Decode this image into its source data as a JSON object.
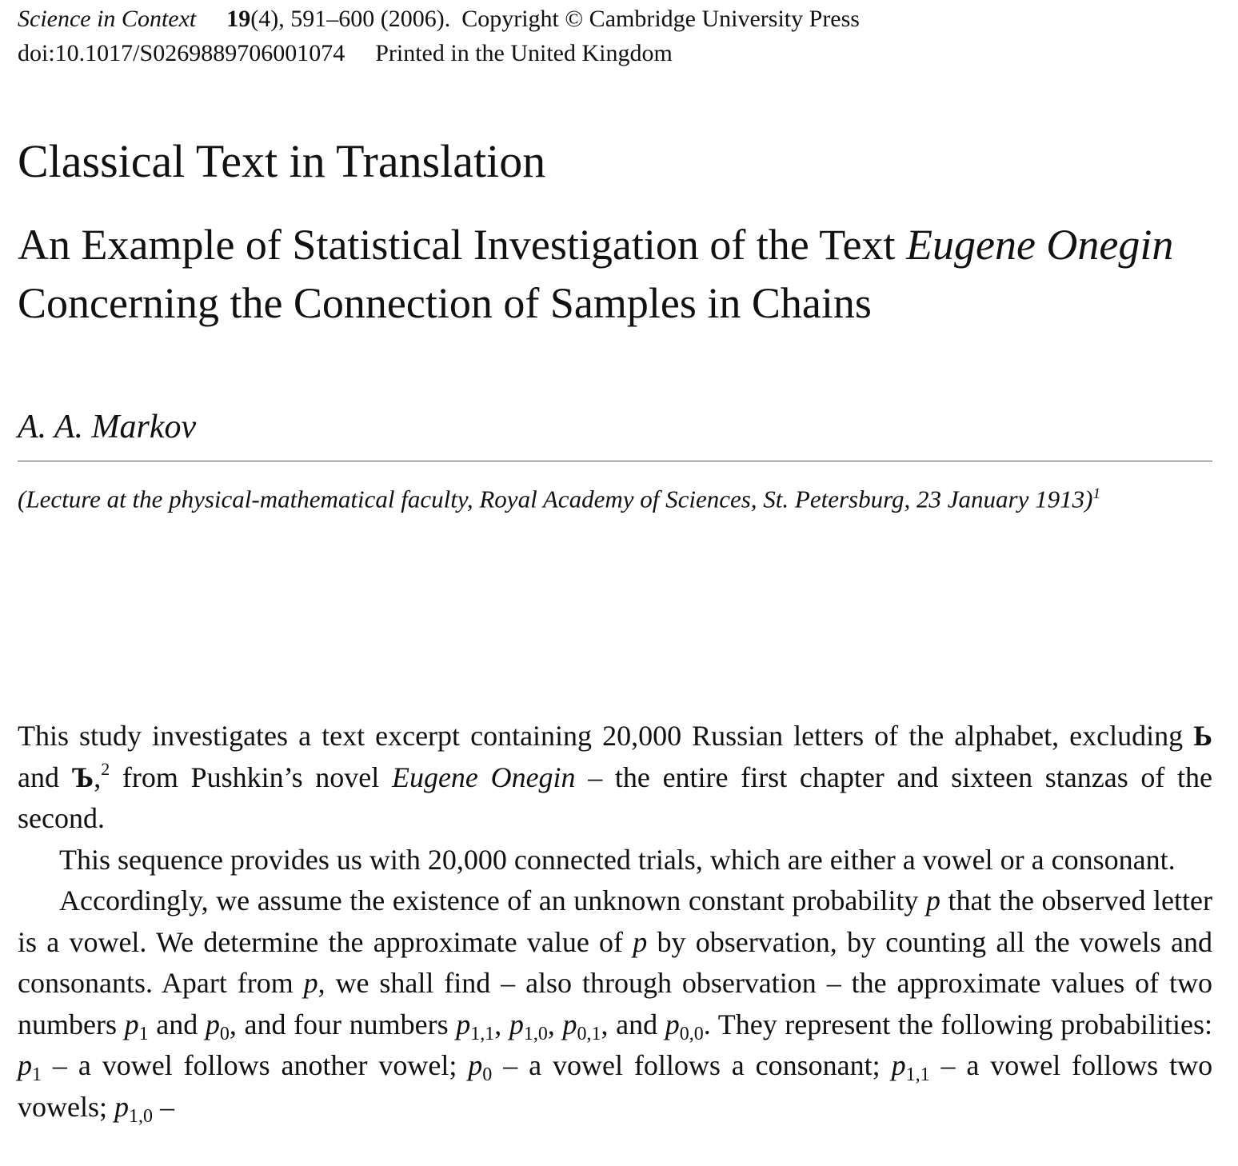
{
  "header": {
    "journal": "Science in Context",
    "volume": "19",
    "issue_pages_year": "(4), 591–600 (2006).",
    "copyright": "Copyright © Cambridge University Press",
    "doi": "doi:10.1017/S0269889706001074",
    "printed": "Printed in the United Kingdom"
  },
  "section_title": "Classical Text in Translation",
  "article_title": {
    "part1": "An Example of Statistical Investigation of the Text",
    "italic": "Eugene Onegin",
    "part2": "Concerning the Connection of Samples in Chains"
  },
  "author": "A. A. Markov",
  "lecture_note": {
    "text": "(Lecture at the physical-mathematical faculty, Royal Academy of Sciences, St. Petersburg, 23 January 1913)",
    "footnote_mark": "1"
  },
  "body": {
    "p1": {
      "a": "This study investigates a text excerpt containing 20,000 Russian letters of the alphabet, excluding",
      "letter1": "Ь",
      "and": "and",
      "letter2": "Ъ",
      "comma": ",",
      "footnote_mark": "2",
      "b": "from Pushkin’s novel",
      "novel": "Eugene Onegin",
      "c": "– the entire first chapter and sixteen stanzas of the second."
    },
    "p2": "This sequence provides us with 20,000 connected trials, which are either a vowel or a consonant.",
    "p3": {
      "a": "Accordingly, we assume the existence of an unknown constant probability",
      "p": "p",
      "b": "that the observed letter is a vowel. We determine the approximate value of",
      "c": "by observation, by counting all the vowels and consonants. Apart from",
      "d": ", we shall find – also through observation – the approximate values of two numbers",
      "e": "and",
      "f": ", and four numbers",
      "sep": ",",
      "g": ", and",
      "h": ". They represent the following probabilities:",
      "i": "– a vowel follows another vowel;",
      "j": "– a vowel follows a consonant;",
      "k": "– a vowel follows two vowels;",
      "l": "–",
      "sub_1": "1",
      "sub_0": "0",
      "sub_11": "1,1",
      "sub_10": "1,0",
      "sub_01": "0,1",
      "sub_00": "0,0"
    }
  }
}
